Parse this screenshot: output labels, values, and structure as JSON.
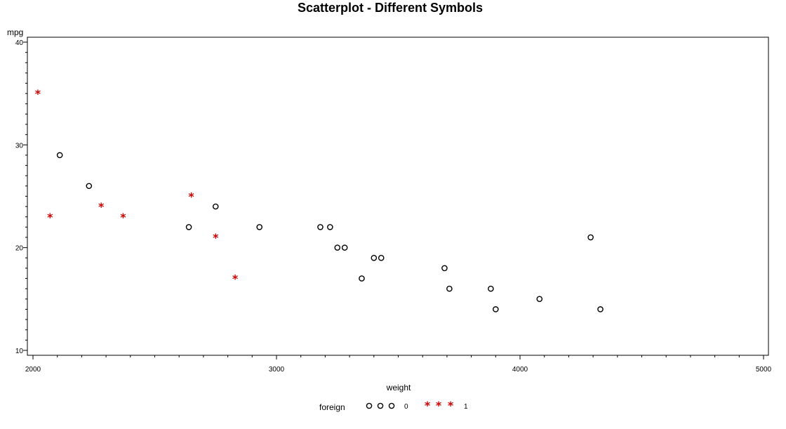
{
  "chart_data": {
    "type": "scatter",
    "title": "Scatterplot - Different Symbols",
    "xlabel": "weight",
    "ylabel": "mpg",
    "xlim": [
      2000,
      5000
    ],
    "ylim": [
      10,
      40
    ],
    "x_ticks": [
      2000,
      3000,
      4000,
      5000
    ],
    "y_ticks": [
      10,
      20,
      30,
      40
    ],
    "x_ticks_labels": [
      "2000",
      "3000",
      "4000",
      "5000"
    ],
    "y_ticks_labels": [
      "10",
      "20",
      "30",
      "40"
    ],
    "grid": false,
    "legend": {
      "title": "foreign",
      "placement": "bottom-center",
      "entries": [
        {
          "label": "0",
          "symbol": "circle",
          "color": "#000000"
        },
        {
          "label": "1",
          "symbol": "star",
          "color": "#cc0000"
        }
      ]
    },
    "series": [
      {
        "name": "0",
        "symbol": "circle",
        "color": "#000000",
        "points": [
          {
            "x": 2110,
            "y": 29
          },
          {
            "x": 2230,
            "y": 26
          },
          {
            "x": 2640,
            "y": 22
          },
          {
            "x": 2750,
            "y": 24
          },
          {
            "x": 2930,
            "y": 22
          },
          {
            "x": 3180,
            "y": 22
          },
          {
            "x": 3220,
            "y": 22
          },
          {
            "x": 3250,
            "y": 20
          },
          {
            "x": 3280,
            "y": 20
          },
          {
            "x": 3350,
            "y": 17
          },
          {
            "x": 3400,
            "y": 19
          },
          {
            "x": 3430,
            "y": 19
          },
          {
            "x": 3690,
            "y": 18
          },
          {
            "x": 3710,
            "y": 16
          },
          {
            "x": 3880,
            "y": 16
          },
          {
            "x": 3900,
            "y": 14
          },
          {
            "x": 4080,
            "y": 15
          },
          {
            "x": 4290,
            "y": 21
          },
          {
            "x": 4330,
            "y": 14
          }
        ]
      },
      {
        "name": "1",
        "symbol": "star",
        "color": "#cc0000",
        "points": [
          {
            "x": 2020,
            "y": 35
          },
          {
            "x": 2070,
            "y": 23
          },
          {
            "x": 2280,
            "y": 24
          },
          {
            "x": 2370,
            "y": 23
          },
          {
            "x": 2650,
            "y": 25
          },
          {
            "x": 2750,
            "y": 21
          },
          {
            "x": 2830,
            "y": 17
          }
        ]
      }
    ]
  }
}
